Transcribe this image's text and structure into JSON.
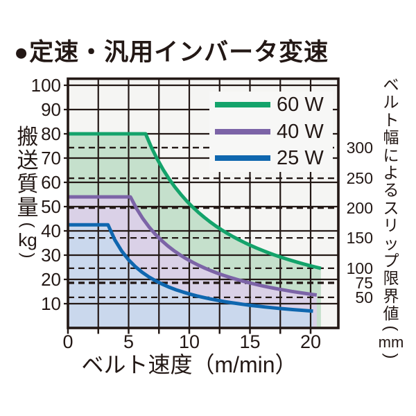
{
  "header": {
    "title": "●定速・汎用インバータ変速"
  },
  "colors": {
    "text": "#231815",
    "grid": "#231815",
    "plot_bg": "#F5F5F3",
    "legend_bg": "#F7F7F6",
    "series_60w": "#14A36B",
    "series_40w": "#7C64A7",
    "series_25w": "#0F67AF",
    "fill_60w": "#C5E0CC",
    "fill_40w": "#DAD1E7",
    "fill_25w": "#CAD8ED"
  },
  "chart_data": {
    "type": "area",
    "title": "定速・汎用インバータ変速",
    "xlabel": "ベルト速度（m/min）",
    "ylabel": {
      "text": "搬送質量",
      "unit": "kg"
    },
    "y2label": {
      "text": "ベルト幅によるスリップ限界値",
      "unit": "mm"
    },
    "xlim": [
      0,
      22.3
    ],
    "ylim": [
      0,
      102.8
    ],
    "grid": true,
    "x_ticks": [
      0,
      5,
      10,
      15,
      20
    ],
    "x_grid_interval": 2.5,
    "y_ticks": [
      10,
      20,
      30,
      40,
      50,
      60,
      70,
      80,
      90,
      100
    ],
    "legend_position": "upper-right-inside",
    "series": [
      {
        "name": "60 W",
        "max_kg": 80,
        "flat_until_v": 6.4,
        "end_v": 20.85,
        "end_kg": 24.5,
        "color": "#14A36B",
        "fill": "#C5E0CC"
      },
      {
        "name": "40 W",
        "max_kg": 54,
        "flat_until_v": 5.15,
        "end_v": 20.5,
        "end_kg": 13.6,
        "color": "#7C64A7",
        "fill": "#DAD1E7"
      },
      {
        "name": "25 W",
        "max_kg": 42.5,
        "flat_until_v": 3.3,
        "end_v": 20.2,
        "end_kg": 6.9,
        "color": "#0F67AF",
        "fill": "#CAD8ED"
      }
    ],
    "y2_ticks": [
      {
        "label": "300",
        "kg": 74.3
      },
      {
        "label": "250",
        "kg": 61.7
      },
      {
        "label": "200",
        "kg": 49.4
      },
      {
        "label": "150",
        "kg": 37.1
      },
      {
        "label": "100",
        "kg": 24.6
      },
      {
        "label": "75",
        "kg": 18.6,
        "bold": true
      },
      {
        "label": "50",
        "kg": 12.6
      }
    ]
  }
}
